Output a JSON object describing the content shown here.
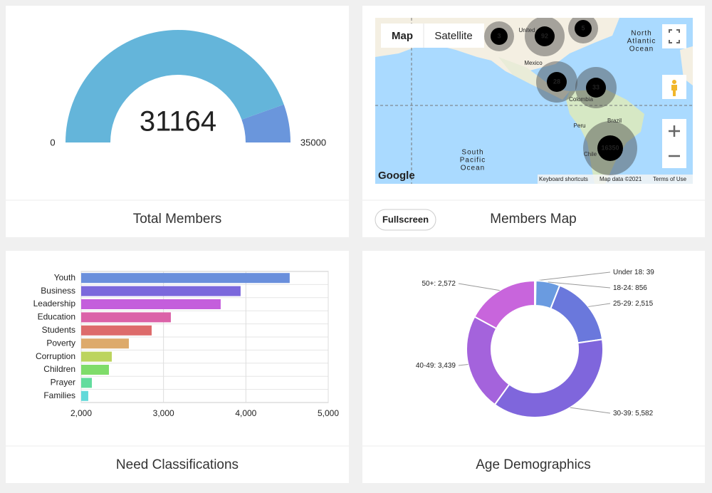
{
  "chart_data": [
    {
      "type": "gauge",
      "title": "Total Members",
      "value": 31164,
      "ylim": [
        0,
        35000
      ],
      "yticks": [
        0,
        35000
      ],
      "color": "#64b5da",
      "track_color": "#6a96dc"
    },
    {
      "type": "bar",
      "orientation": "horizontal",
      "title": "Need Classifications",
      "categories": [
        "Youth",
        "Business",
        "Leadership",
        "Education",
        "Students",
        "Poverty",
        "Corruption",
        "Children",
        "Prayer",
        "Families"
      ],
      "values": [
        4532,
        3936,
        3694,
        3089,
        2856,
        2579,
        2372,
        2337,
        2130,
        2086
      ],
      "colors": [
        "#6a8fdc",
        "#7b68dc",
        "#c45edc",
        "#db62a8",
        "#dd6b6b",
        "#ddaa6b",
        "#bcd45e",
        "#7fdc6a",
        "#62dc9d",
        "#62d9d9"
      ],
      "xlim": [
        2000,
        5000
      ],
      "xticks": [
        {
          "value": 2000,
          "label": "2,000"
        },
        {
          "value": 3000,
          "label": "3,000"
        },
        {
          "value": 4000,
          "label": "4,000"
        },
        {
          "value": 5000,
          "label": "5,000"
        }
      ],
      "grid": true
    },
    {
      "type": "pie",
      "donut": true,
      "title": "Age Demographics",
      "categories": [
        "Under 18",
        "18-24",
        "25-29",
        "30-39",
        "40-49",
        "50+"
      ],
      "values": [
        39,
        856,
        2515,
        5582,
        3439,
        2572
      ],
      "value_labels": [
        "39",
        "856",
        "2,515",
        "5,582",
        "3,439",
        "2,572"
      ],
      "separator": ": ",
      "colors": [
        "#5fb0dc",
        "#6a9be0",
        "#6a78dc",
        "#7f66dc",
        "#a463dc",
        "#c865dc"
      ]
    }
  ],
  "map_panel": {
    "title": "Members Map",
    "button": "Fullscreen",
    "map_types": [
      "Map",
      "Satellite"
    ],
    "clusters": [
      3,
      92,
      5,
      28,
      33,
      16350
    ],
    "places": [
      "United",
      "Mexico",
      "Colombia",
      "Peru",
      "Brazil",
      "Chile"
    ],
    "oceans": [
      [
        "North",
        "Atlantic",
        "Ocean"
      ],
      [
        "South",
        "Pacific",
        "Ocean"
      ]
    ],
    "logo": "Google",
    "attribution": [
      "Keyboard shortcuts",
      "Map data ©2021",
      "Terms of Use"
    ]
  }
}
